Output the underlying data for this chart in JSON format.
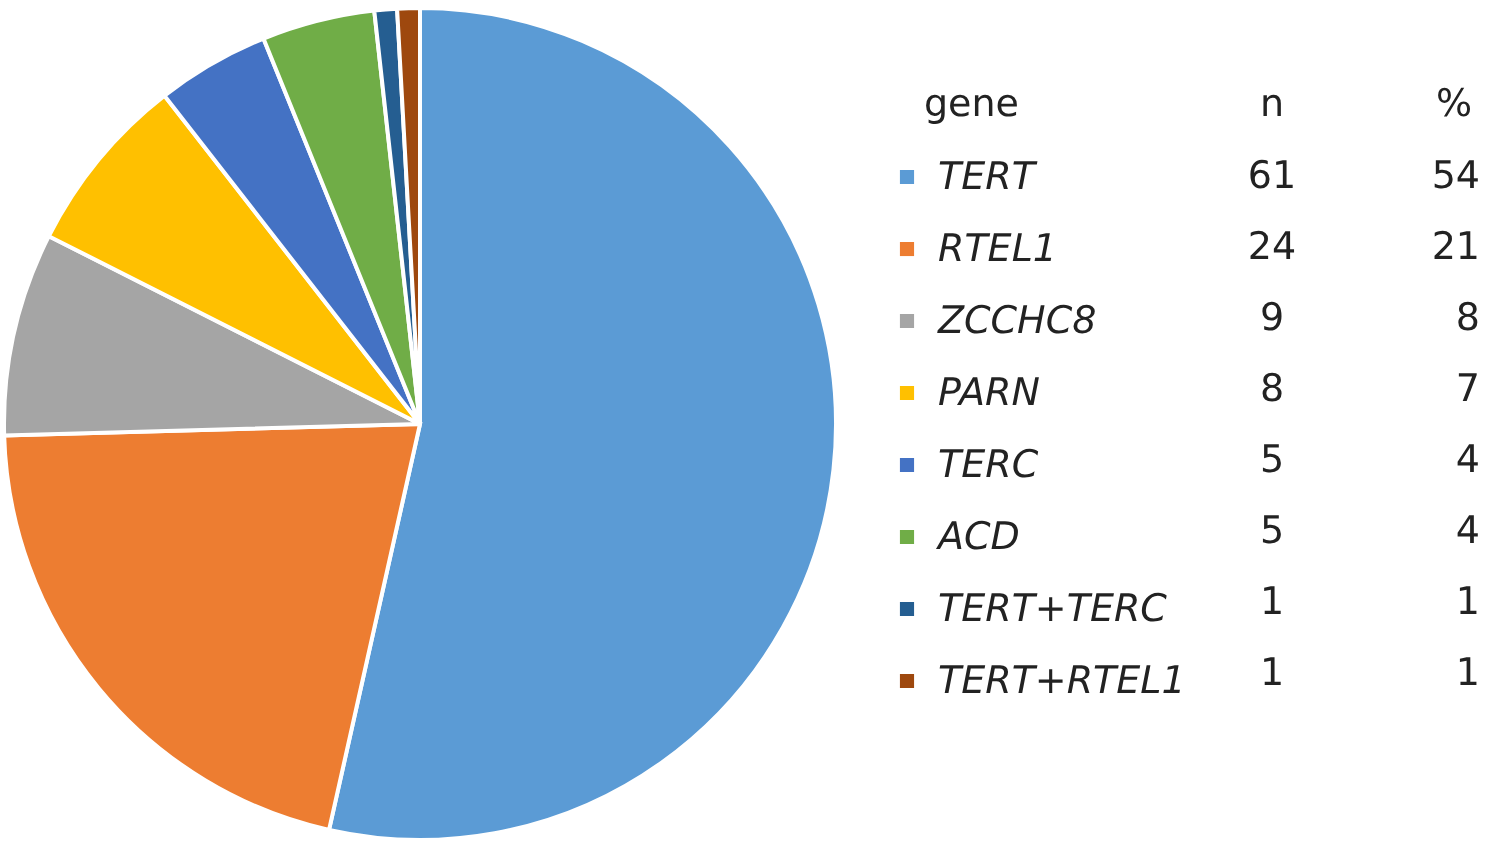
{
  "chart_data": {
    "type": "pie",
    "legend_title": "gene",
    "legend": "right",
    "data_labels": true,
    "categories": [
      "TERT",
      "RTEL1",
      "ZCCHC8",
      "PARN",
      "TERC",
      "ACD",
      "TERT+TERC",
      "TERT+RTEL1"
    ],
    "values": [
      61,
      24,
      9,
      8,
      5,
      5,
      1,
      1
    ],
    "colors": [
      "#5b9bd5",
      "#ed7d31",
      "#a5a5a5",
      "#ffc000",
      "#4472c4",
      "#70ad47",
      "#255e91",
      "#9e480e"
    ],
    "annotations": [
      "n",
      "%",
      "54",
      "21",
      "8",
      "7",
      "4",
      "4",
      "1",
      "1"
    ]
  }
}
